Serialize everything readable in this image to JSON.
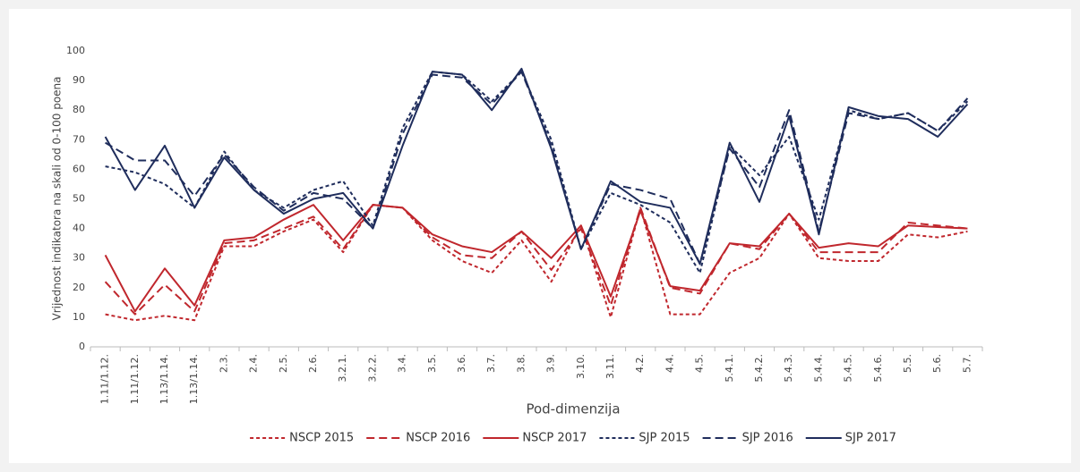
{
  "chart_data": {
    "type": "line",
    "y_label": "Vrijednost indikatora na skali od 0-100 poena",
    "x_label": "Pod-dimenzija",
    "categories": [
      "1.11/1.12.",
      "1.11/1.12.",
      "1.13/1.14.",
      "1.13/1.14.",
      "2.3.",
      "2.4.",
      "2.5.",
      "2.6.",
      "3.2.1.",
      "3.2.2.",
      "3.4.",
      "3.5.",
      "3.6.",
      "3.7.",
      "3.8.",
      "3.9.",
      "3.10.",
      "3.11.",
      "4.2.",
      "4.4.",
      "4.5.",
      "5.4.1.",
      "5.4.2.",
      "5.4.3.",
      "5.4.4.",
      "5.4.5.",
      "5.4.6.",
      "5.5.",
      "5.6.",
      "5.7."
    ],
    "series": [
      {
        "name": "NSCP 2015",
        "color": "#c0272d",
        "style": "dotted",
        "values": [
          11,
          9,
          10.5,
          9,
          34,
          34,
          39,
          43,
          32,
          48,
          47,
          36,
          29,
          25,
          36,
          22,
          41,
          10,
          47,
          11,
          11,
          25,
          30,
          45,
          30,
          29,
          29,
          38,
          37,
          39
        ]
      },
      {
        "name": "NSCP 2016",
        "color": "#c0272d",
        "style": "dashed",
        "values": [
          22,
          11,
          21,
          12,
          35,
          36,
          40,
          44,
          33,
          48,
          47,
          37,
          31,
          30,
          39,
          26,
          40,
          14,
          47,
          20,
          18,
          35,
          33,
          45,
          32,
          32,
          32,
          42,
          41,
          40
        ]
      },
      {
        "name": "NSCP 2017",
        "color": "#c0272d",
        "style": "solid",
        "values": [
          31,
          12,
          26.5,
          14,
          36,
          37,
          43,
          48,
          36,
          48,
          47,
          38,
          34,
          32,
          39,
          30,
          41,
          17,
          46,
          20.5,
          19,
          35,
          34,
          45,
          33.5,
          35,
          34,
          41,
          40.5,
          40
        ]
      },
      {
        "name": "SJP 2015",
        "color": "#1f2d5c",
        "style": "dotted",
        "values": [
          61,
          59,
          55,
          47,
          66,
          53,
          47,
          53,
          56,
          41,
          74,
          93,
          92,
          83,
          93,
          70,
          33,
          52,
          48,
          42,
          25,
          68,
          58,
          71,
          43,
          80,
          77,
          79,
          73,
          83
        ]
      },
      {
        "name": "SJP 2016",
        "color": "#1f2d5c",
        "style": "dashed",
        "values": [
          69,
          63,
          63,
          51,
          65,
          54,
          46,
          52,
          50,
          40,
          72,
          92,
          91,
          82,
          93,
          68,
          33,
          55,
          53,
          50,
          28,
          67,
          54,
          80,
          39,
          79,
          77,
          79,
          73,
          84
        ]
      },
      {
        "name": "SJP 2017",
        "color": "#1f2d5c",
        "style": "solid",
        "values": [
          71,
          53,
          68,
          47,
          64,
          53,
          45,
          50,
          52,
          40,
          68,
          93,
          92,
          80,
          94,
          67,
          33,
          56,
          49,
          47,
          28,
          69,
          49,
          78,
          38,
          81,
          78,
          77,
          71,
          82
        ]
      }
    ],
    "ylim": [
      0,
      100
    ],
    "yticks": [
      0,
      10,
      20,
      30,
      40,
      50,
      60,
      70,
      80,
      90,
      100
    ],
    "grid": false
  }
}
